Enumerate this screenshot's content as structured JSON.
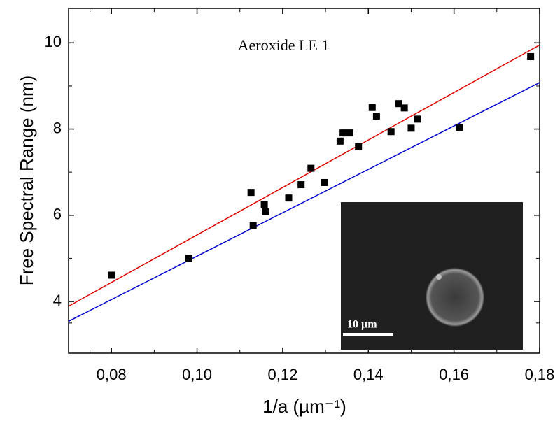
{
  "chart_data": {
    "type": "scatter",
    "annotation": "Aeroxide  LE 1",
    "xlabel": "1/a (µm⁻¹)",
    "ylabel": "Free Spectral Range (nm)",
    "inset_label": "10 µm",
    "xlim": [
      0.07,
      0.18
    ],
    "ylim": [
      2.8,
      10.8
    ],
    "xticks": [
      {
        "value": 0.08,
        "label": "0,08"
      },
      {
        "value": 0.1,
        "label": "0,10"
      },
      {
        "value": 0.12,
        "label": "0,12"
      },
      {
        "value": 0.14,
        "label": "0,14"
      },
      {
        "value": 0.16,
        "label": "0,16"
      },
      {
        "value": 0.18,
        "label": "0,18"
      }
    ],
    "yticks": [
      4,
      6,
      8,
      10
    ],
    "series": [
      {
        "type": "scatter",
        "color": "#000000",
        "x": [
          0.08,
          0.0981,
          0.1126,
          0.1131,
          0.1157,
          0.116,
          0.1214,
          0.1243,
          0.1266,
          0.1297,
          0.1334,
          0.1341,
          0.1357,
          0.1377,
          0.1409,
          0.1419,
          0.1453,
          0.1471,
          0.1484,
          0.15,
          0.1515,
          0.1613,
          0.1779
        ],
        "values": [
          4.61,
          5.0,
          6.53,
          5.76,
          6.24,
          6.08,
          6.4,
          6.71,
          7.09,
          6.76,
          7.72,
          7.91,
          7.91,
          7.59,
          8.5,
          8.3,
          7.94,
          8.59,
          8.49,
          8.02,
          8.23,
          8.04,
          9.68
        ]
      },
      {
        "type": "line",
        "color": "#e00000",
        "x": [
          0.07,
          0.18
        ],
        "values": [
          3.89,
          9.95
        ]
      },
      {
        "type": "line",
        "color": "#0000d0",
        "x": [
          0.07,
          0.18
        ],
        "values": [
          3.54,
          9.08
        ]
      }
    ]
  }
}
